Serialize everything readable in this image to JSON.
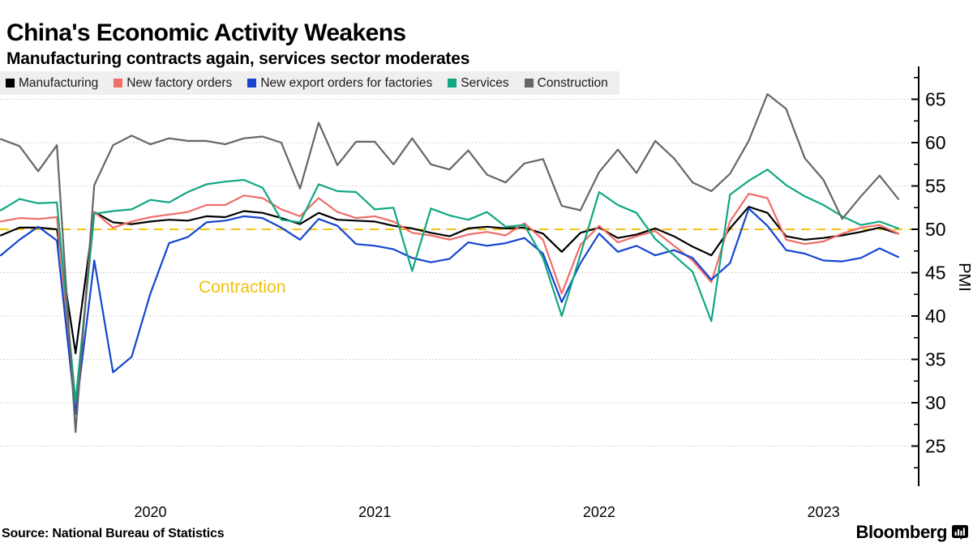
{
  "chart_data": {
    "type": "line",
    "title": "China's Economic Activity Weakens",
    "subtitle": "Manufacturing contracts again, services sector moderates",
    "ylabel": "PMI",
    "ylim": [
      21,
      68.5
    ],
    "y_ticks": [
      25,
      30,
      35,
      40,
      45,
      50,
      55,
      60,
      65
    ],
    "y_minor_tick_step": 2.5,
    "grid": "horizontal-dotted",
    "legend_position": "top",
    "x_year_labels": [
      "2020",
      "2021",
      "2022",
      "2023"
    ],
    "reference_line": {
      "value": 50,
      "color": "#f2c40d",
      "style": "dashed"
    },
    "annotation": {
      "text": "Contraction",
      "color": "#f0c20c"
    },
    "months": [
      "2019-10",
      "2019-11",
      "2019-12",
      "2020-01",
      "2020-02",
      "2020-03",
      "2020-04",
      "2020-05",
      "2020-06",
      "2020-07",
      "2020-08",
      "2020-09",
      "2020-10",
      "2020-11",
      "2020-12",
      "2021-01",
      "2021-02",
      "2021-03",
      "2021-04",
      "2021-05",
      "2021-06",
      "2021-07",
      "2021-08",
      "2021-09",
      "2021-10",
      "2021-11",
      "2021-12",
      "2022-01",
      "2022-02",
      "2022-03",
      "2022-04",
      "2022-05",
      "2022-06",
      "2022-07",
      "2022-08",
      "2022-09",
      "2022-10",
      "2022-11",
      "2022-12",
      "2023-01",
      "2023-02",
      "2023-03",
      "2023-04",
      "2023-05",
      "2023-06",
      "2023-07",
      "2023-08",
      "2023-09",
      "2023-10"
    ],
    "series": [
      {
        "name": "Manufacturing",
        "color": "#000000",
        "values": [
          49.3,
          50.2,
          50.2,
          50.0,
          35.7,
          52.0,
          50.8,
          50.6,
          50.9,
          51.1,
          51.0,
          51.5,
          51.4,
          52.1,
          51.9,
          51.3,
          50.6,
          51.9,
          51.1,
          51.0,
          50.9,
          50.4,
          50.1,
          49.6,
          49.2,
          50.1,
          50.3,
          50.1,
          50.2,
          49.5,
          47.4,
          49.6,
          50.2,
          49.0,
          49.4,
          50.1,
          49.2,
          48.0,
          47.0,
          50.1,
          52.6,
          51.9,
          49.2,
          48.8,
          49.0,
          49.3,
          49.7,
          50.2,
          49.5
        ]
      },
      {
        "name": "New factory orders",
        "color": "#ef6e68",
        "values": [
          50.9,
          51.3,
          51.2,
          51.4,
          29.3,
          52.0,
          50.2,
          50.9,
          51.4,
          51.7,
          52.0,
          52.8,
          52.8,
          53.9,
          53.6,
          52.3,
          51.5,
          53.6,
          52.0,
          51.3,
          51.5,
          50.9,
          49.6,
          49.3,
          48.8,
          49.4,
          49.7,
          49.3,
          50.7,
          48.8,
          42.6,
          48.2,
          50.4,
          48.5,
          49.2,
          49.8,
          48.1,
          46.4,
          43.9,
          50.9,
          54.1,
          53.6,
          48.8,
          48.3,
          48.6,
          49.5,
          50.2,
          50.5,
          49.5
        ]
      },
      {
        "name": "New export orders for factories",
        "color": "#1545cf",
        "values": [
          47.0,
          48.8,
          50.3,
          48.7,
          28.7,
          46.4,
          33.5,
          35.3,
          42.6,
          48.4,
          49.1,
          50.8,
          51.0,
          51.5,
          51.3,
          50.2,
          48.8,
          51.2,
          50.4,
          48.3,
          48.1,
          47.7,
          46.7,
          46.2,
          46.6,
          48.5,
          48.1,
          48.4,
          49.0,
          47.2,
          41.6,
          46.1,
          49.5,
          47.4,
          48.1,
          47.0,
          47.6,
          46.7,
          44.2,
          46.1,
          52.4,
          50.4,
          47.6,
          47.2,
          46.4,
          46.3,
          46.7,
          47.8,
          46.8
        ]
      },
      {
        "name": "Services",
        "color": "#10a783",
        "values": [
          52.2,
          53.5,
          53.0,
          53.1,
          30.1,
          51.8,
          52.1,
          52.3,
          53.4,
          53.1,
          54.3,
          55.2,
          55.5,
          55.7,
          54.8,
          51.1,
          50.8,
          55.2,
          54.4,
          54.3,
          52.3,
          52.5,
          45.2,
          52.4,
          51.6,
          51.1,
          52.0,
          50.3,
          50.5,
          46.7,
          40.0,
          47.1,
          54.3,
          52.8,
          51.9,
          48.9,
          47.0,
          45.1,
          39.4,
          54.0,
          55.6,
          56.9,
          55.1,
          53.8,
          52.8,
          51.5,
          50.5,
          50.9,
          50.1
        ]
      },
      {
        "name": "Construction",
        "color": "#666666",
        "values": [
          60.4,
          59.6,
          56.7,
          59.7,
          26.6,
          55.1,
          59.7,
          60.8,
          59.8,
          60.5,
          60.2,
          60.2,
          59.8,
          60.5,
          60.7,
          60.0,
          54.7,
          62.3,
          57.4,
          60.1,
          60.1,
          57.5,
          60.5,
          57.5,
          56.9,
          59.1,
          56.3,
          55.4,
          57.6,
          58.1,
          52.7,
          52.2,
          56.6,
          59.2,
          56.5,
          60.2,
          58.2,
          55.4,
          54.4,
          56.4,
          60.2,
          65.6,
          63.9,
          58.2,
          55.7,
          51.2,
          53.8,
          56.2,
          53.5
        ]
      }
    ]
  },
  "footer": {
    "source_label": "Source: National Bureau of Statistics",
    "brand": "Bloomberg"
  }
}
